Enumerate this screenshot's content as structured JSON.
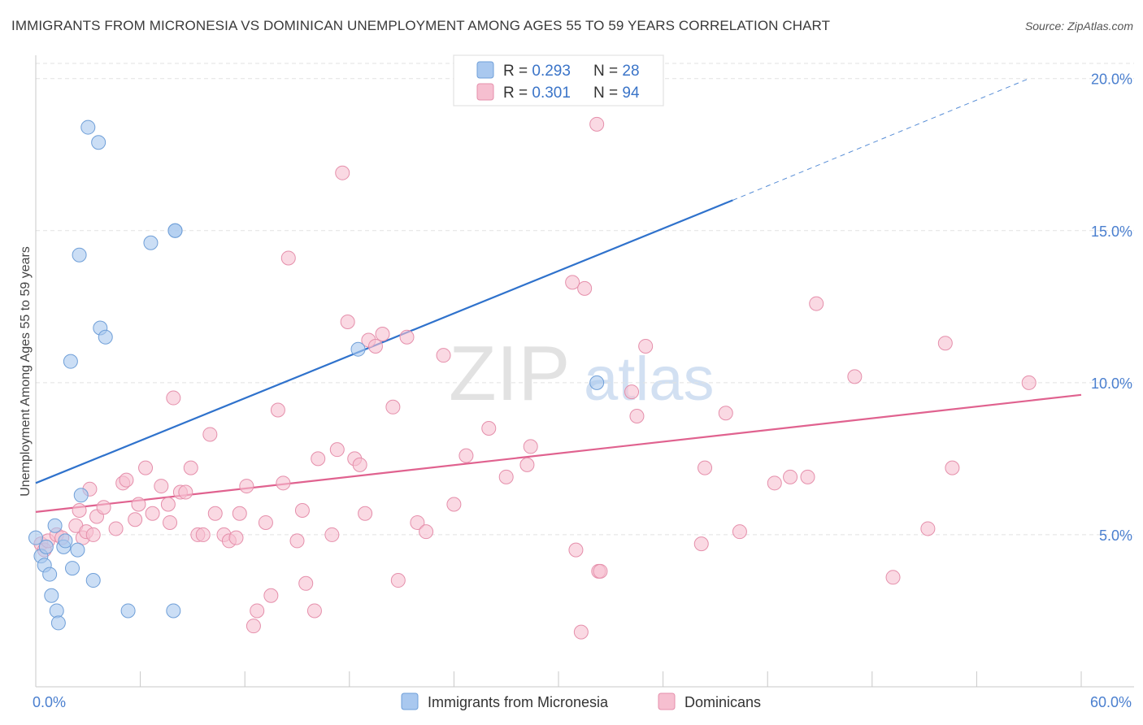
{
  "header": {
    "title": "IMMIGRANTS FROM MICRONESIA VS DOMINICAN UNEMPLOYMENT AMONG AGES 55 TO 59 YEARS CORRELATION CHART",
    "source": "Source: ZipAtlas.com"
  },
  "watermark": {
    "zip": "ZIP",
    "atlas": "atlas"
  },
  "colors": {
    "blue_fill": "#a9c8ef",
    "blue_stroke": "#6f9fd8",
    "blue_line": "#2f72cc",
    "pink_fill": "#f6bfd0",
    "pink_stroke": "#e58fab",
    "pink_line": "#e0628f",
    "tick_label": "#4a7fcf"
  },
  "chart_data": {
    "type": "scatter",
    "title": "IMMIGRANTS FROM MICRONESIA VS DOMINICAN UNEMPLOYMENT AMONG AGES 55 TO 59 YEARS CORRELATION CHART",
    "xlabel": "",
    "ylabel": "Unemployment Among Ages 55 to 59 years",
    "xlim": [
      0,
      60
    ],
    "ylim": [
      0,
      20.5
    ],
    "x_tick_labels": [
      {
        "value": 0,
        "label": "0.0%"
      },
      {
        "value": 60,
        "label": "60.0%"
      }
    ],
    "y_tick_labels": [
      {
        "value": 5,
        "label": "5.0%"
      },
      {
        "value": 10,
        "label": "10.0%"
      },
      {
        "value": 15,
        "label": "15.0%"
      },
      {
        "value": 20,
        "label": "20.0%"
      }
    ],
    "legend_stats": [
      {
        "r_label": "R = ",
        "r_value": "0.293",
        "n_label": "N = ",
        "n_value": "28"
      },
      {
        "r_label": "R = ",
        "r_value": "0.301",
        "n_label": "N = ",
        "n_value": "94"
      }
    ],
    "series": [
      {
        "name": "Immigrants from Micronesia",
        "color": "blue",
        "trend": {
          "x0": 0,
          "y0": 6.7,
          "x1": 40,
          "y1": 16.0,
          "dash_to_x": 57,
          "dash_to_y": 20.0
        },
        "points": [
          [
            0,
            4.9
          ],
          [
            0.3,
            4.3
          ],
          [
            0.5,
            4.0
          ],
          [
            0.8,
            3.7
          ],
          [
            0.9,
            3.0
          ],
          [
            1.1,
            5.3
          ],
          [
            1.2,
            2.5
          ],
          [
            1.3,
            2.1
          ],
          [
            1.6,
            4.6
          ],
          [
            1.7,
            4.8
          ],
          [
            2.1,
            3.9
          ],
          [
            2.4,
            4.5
          ],
          [
            2.0,
            10.7
          ],
          [
            2.6,
            6.3
          ],
          [
            3.3,
            3.5
          ],
          [
            2.5,
            14.2
          ],
          [
            3.0,
            18.4
          ],
          [
            3.6,
            17.9
          ],
          [
            3.7,
            11.8
          ],
          [
            4.0,
            11.5
          ],
          [
            5.3,
            2.5
          ],
          [
            6.6,
            14.6
          ],
          [
            8.0,
            15.0
          ],
          [
            8.0,
            15.0
          ],
          [
            7.9,
            2.5
          ],
          [
            18.5,
            11.1
          ],
          [
            32.2,
            10.0
          ],
          [
            0.6,
            4.6
          ]
        ]
      },
      {
        "name": "Dominicans",
        "color": "pink",
        "trend": {
          "x0": 0,
          "y0": 5.75,
          "x1": 60,
          "y1": 9.6
        },
        "points": [
          [
            0.3,
            4.7
          ],
          [
            0.5,
            4.5
          ],
          [
            0.7,
            4.8
          ],
          [
            1.2,
            5.0
          ],
          [
            1.5,
            4.9
          ],
          [
            2.3,
            5.3
          ],
          [
            2.5,
            5.8
          ],
          [
            2.7,
            4.9
          ],
          [
            2.9,
            5.1
          ],
          [
            3.1,
            6.5
          ],
          [
            3.3,
            5.0
          ],
          [
            3.5,
            5.6
          ],
          [
            3.9,
            5.9
          ],
          [
            4.6,
            5.2
          ],
          [
            5.0,
            6.7
          ],
          [
            5.2,
            6.8
          ],
          [
            5.7,
            5.5
          ],
          [
            5.9,
            6.0
          ],
          [
            6.3,
            7.2
          ],
          [
            6.7,
            5.7
          ],
          [
            7.2,
            6.6
          ],
          [
            7.6,
            6.0
          ],
          [
            7.7,
            5.4
          ],
          [
            7.9,
            9.5
          ],
          [
            8.3,
            6.4
          ],
          [
            8.6,
            6.4
          ],
          [
            8.9,
            7.2
          ],
          [
            9.3,
            5.0
          ],
          [
            9.6,
            5.0
          ],
          [
            10.0,
            8.3
          ],
          [
            10.3,
            5.7
          ],
          [
            10.8,
            5.0
          ],
          [
            11.1,
            4.8
          ],
          [
            11.5,
            4.9
          ],
          [
            11.7,
            5.7
          ],
          [
            12.1,
            6.6
          ],
          [
            12.5,
            2.0
          ],
          [
            12.7,
            2.5
          ],
          [
            13.2,
            5.4
          ],
          [
            13.5,
            3.0
          ],
          [
            13.9,
            9.1
          ],
          [
            14.2,
            6.7
          ],
          [
            14.5,
            14.1
          ],
          [
            15.0,
            4.8
          ],
          [
            15.3,
            5.8
          ],
          [
            15.5,
            3.4
          ],
          [
            16.0,
            2.5
          ],
          [
            16.2,
            7.5
          ],
          [
            17.0,
            5.0
          ],
          [
            17.3,
            7.8
          ],
          [
            17.6,
            16.9
          ],
          [
            17.9,
            12.0
          ],
          [
            18.3,
            7.5
          ],
          [
            18.6,
            7.3
          ],
          [
            18.9,
            5.7
          ],
          [
            19.1,
            11.4
          ],
          [
            19.5,
            11.2
          ],
          [
            19.9,
            11.6
          ],
          [
            20.5,
            9.2
          ],
          [
            20.8,
            3.5
          ],
          [
            21.3,
            11.5
          ],
          [
            21.9,
            5.4
          ],
          [
            22.4,
            5.1
          ],
          [
            23.4,
            10.9
          ],
          [
            24.0,
            6.0
          ],
          [
            24.7,
            7.6
          ],
          [
            26.0,
            8.5
          ],
          [
            27.0,
            6.9
          ],
          [
            28.2,
            7.3
          ],
          [
            28.4,
            7.9
          ],
          [
            30.8,
            13.3
          ],
          [
            31.0,
            4.5
          ],
          [
            31.3,
            1.8
          ],
          [
            31.5,
            13.1
          ],
          [
            32.2,
            18.5
          ],
          [
            32.3,
            3.8
          ],
          [
            32.4,
            3.8
          ],
          [
            34.2,
            9.7
          ],
          [
            34.5,
            8.9
          ],
          [
            35.0,
            11.2
          ],
          [
            38.2,
            4.7
          ],
          [
            38.4,
            7.2
          ],
          [
            39.6,
            9.0
          ],
          [
            40.4,
            5.1
          ],
          [
            42.4,
            6.7
          ],
          [
            43.3,
            6.9
          ],
          [
            44.3,
            6.9
          ],
          [
            44.8,
            12.6
          ],
          [
            47.0,
            10.2
          ],
          [
            49.2,
            3.6
          ],
          [
            51.2,
            5.2
          ],
          [
            52.2,
            11.3
          ],
          [
            52.6,
            7.2
          ],
          [
            57.0,
            10.0
          ]
        ]
      }
    ]
  }
}
